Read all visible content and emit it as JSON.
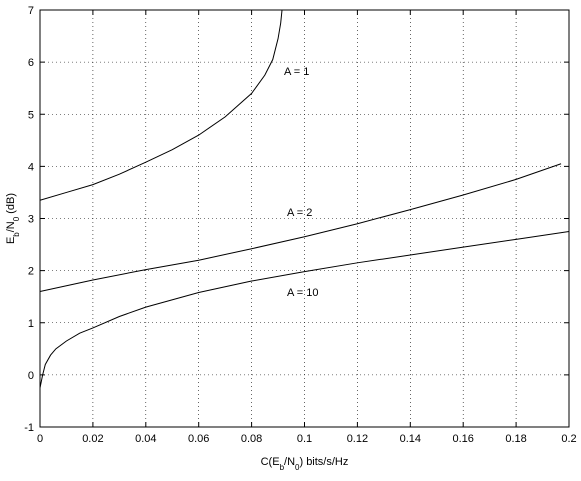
{
  "chart_data": {
    "type": "line",
    "xlabel": [
      "C(E",
      "b",
      "/N",
      "0",
      ") bits/s/Hz"
    ],
    "ylabel": [
      "E",
      "b",
      "/N",
      "0",
      " (dB)"
    ],
    "series": [
      {
        "name": "A = 1",
        "color": "#000000",
        "x": [
          0,
          0.01,
          0.02,
          0.03,
          0.04,
          0.05,
          0.06,
          0.07,
          0.08,
          0.085,
          0.088,
          0.09,
          0.091,
          0.0915
        ],
        "values": [
          3.35,
          3.5,
          3.65,
          3.85,
          4.08,
          4.32,
          4.6,
          4.95,
          5.4,
          5.75,
          6.05,
          6.45,
          6.75,
          7
        ]
      },
      {
        "name": "A = 2",
        "color": "#000000",
        "x": [
          0,
          0.02,
          0.04,
          0.06,
          0.08,
          0.1,
          0.12,
          0.14,
          0.16,
          0.18,
          0.197
        ],
        "values": [
          1.6,
          1.82,
          2.02,
          2.2,
          2.42,
          2.65,
          2.9,
          3.17,
          3.45,
          3.75,
          4.05
        ]
      },
      {
        "name": "A = 10",
        "color": "#000000",
        "x": [
          0,
          0.001,
          0.002,
          0.004,
          0.006,
          0.01,
          0.015,
          0.02,
          0.03,
          0.04,
          0.06,
          0.08,
          0.1,
          0.12,
          0.14,
          0.16,
          0.18,
          0.2
        ],
        "values": [
          -0.25,
          0.0,
          0.2,
          0.38,
          0.5,
          0.65,
          0.8,
          0.9,
          1.12,
          1.3,
          1.58,
          1.8,
          1.98,
          2.15,
          2.3,
          2.45,
          2.6,
          2.75
        ]
      }
    ],
    "xlim": [
      0,
      0.2
    ],
    "xticks": [
      0,
      0.02,
      0.04,
      0.06,
      0.08,
      0.1,
      0.12,
      0.14,
      0.16,
      0.18,
      0.2
    ],
    "ylim": [
      -1,
      7
    ],
    "yticks": [
      -1,
      0,
      1,
      2,
      3,
      4,
      5,
      6,
      7
    ],
    "grid": true
  }
}
